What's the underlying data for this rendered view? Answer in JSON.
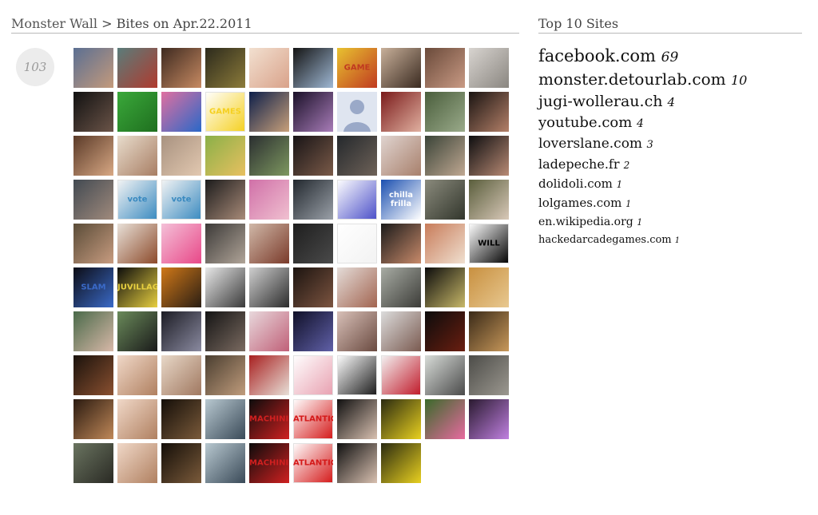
{
  "header": {
    "breadcrumb_root": "Monster Wall",
    "separator": ">",
    "breadcrumb_current": "Bites on Apr.22.2011",
    "sidebar_title": "Top 10 Sites"
  },
  "bite_count": "103",
  "top_sites": [
    {
      "name": "facebook.com",
      "count": "69"
    },
    {
      "name": "monster.detourlab.com",
      "count": "10"
    },
    {
      "name": "jugi-wollerau.ch",
      "count": "4"
    },
    {
      "name": "youtube.com",
      "count": "4"
    },
    {
      "name": "loverslane.com",
      "count": "3"
    },
    {
      "name": "ladepeche.fr",
      "count": "2"
    },
    {
      "name": "dolidoli.com",
      "count": "1"
    },
    {
      "name": "lolgames.com",
      "count": "1"
    },
    {
      "name": "en.wikipedia.org",
      "count": "1"
    },
    {
      "name": "hackedarcadegames.com",
      "count": "1"
    }
  ],
  "thumbnails": [
    {
      "c1": "#5b6f92",
      "c2": "#c49a7c"
    },
    {
      "c1": "#5a7c7a",
      "c2": "#b03a2e"
    },
    {
      "c1": "#3e2a20",
      "c2": "#c78a62"
    },
    {
      "c1": "#2c2a1c",
      "c2": "#8c7b3a"
    },
    {
      "c1": "#f2e0d0",
      "c2": "#d9a28a"
    },
    {
      "c1": "#141414",
      "c2": "#9fb8d4"
    },
    {
      "c1": "#e8c230",
      "c2": "#c03a20",
      "text": "GAME"
    },
    {
      "c1": "#c8b09a",
      "c2": "#3a2a20"
    },
    {
      "c1": "#6a4a3a",
      "c2": "#c99a84"
    },
    {
      "c1": "#d8d4d0",
      "c2": "#8a8680"
    },
    {
      "c1": "#111111",
      "c2": "#6b5448"
    },
    {
      "c1": "#3aa83a",
      "c2": "#1f6f1f"
    },
    {
      "c1": "#e070a0",
      "c2": "#2a68c8"
    },
    {
      "c1": "#ffffff",
      "c2": "#f5d020",
      "text": "GAMES"
    },
    {
      "c1": "#0d1f4a",
      "c2": "#c8a07a"
    },
    {
      "c1": "#1a1028",
      "c2": "#a87cb8"
    },
    {
      "c1": "#c7d2e6",
      "c2": "#eef2f8",
      "avatar": true
    },
    {
      "c1": "#7a1a1a",
      "c2": "#e0b0a0"
    },
    {
      "c1": "#4a5e3c",
      "c2": "#9aaa8a"
    },
    {
      "c1": "#1a1412",
      "c2": "#b48068"
    },
    {
      "c1": "#5a3a28",
      "c2": "#d8a884"
    },
    {
      "c1": "#e8dccc",
      "c2": "#a87e64"
    },
    {
      "c1": "#a89280",
      "c2": "#e2c8b0"
    },
    {
      "c1": "#8ab048",
      "c2": "#e8c060"
    },
    {
      "c1": "#2a2e30",
      "c2": "#7e9860"
    },
    {
      "c1": "#181416",
      "c2": "#7a5a48"
    },
    {
      "c1": "#24282c",
      "c2": "#6e6258"
    },
    {
      "c1": "#e0d4d0",
      "c2": "#a8806c"
    },
    {
      "c1": "#3a4438",
      "c2": "#c0a892"
    },
    {
      "c1": "#0e0e10",
      "c2": "#b88a74"
    },
    {
      "c1": "#424a52",
      "c2": "#a08a7c"
    },
    {
      "c1": "#f4f4f4",
      "c2": "#3a8ac0",
      "text": "vote"
    },
    {
      "c1": "#f4f4f4",
      "c2": "#3a8ac0",
      "text": "vote"
    },
    {
      "c1": "#1c1c1c",
      "c2": "#a88a78"
    },
    {
      "c1": "#d070a8",
      "c2": "#f0c0d0"
    },
    {
      "c1": "#22282e",
      "c2": "#9aa0a8"
    },
    {
      "c1": "#ffffff",
      "c2": "#4a4ec8"
    },
    {
      "c1": "#1a4fb0",
      "c2": "#ffffff",
      "text": "chilla frilla"
    },
    {
      "c1": "#8a8a7c",
      "c2": "#32362c"
    },
    {
      "c1": "#5a5e3c",
      "c2": "#d8c8b8"
    },
    {
      "c1": "#5a4c38",
      "c2": "#c89c80"
    },
    {
      "c1": "#e8e0d8",
      "c2": "#8c4a2a"
    },
    {
      "c1": "#f4c0d8",
      "c2": "#e84888"
    },
    {
      "c1": "#3c3a38",
      "c2": "#b0a498"
    },
    {
      "c1": "#d0b8a8",
      "c2": "#7a3a2a"
    },
    {
      "c1": "#1e1e1e",
      "c2": "#4a4a4a"
    },
    {
      "c1": "#ffffff",
      "c2": "#f2f2f2"
    },
    {
      "c1": "#1a1a1a",
      "c2": "#c88a6a"
    },
    {
      "c1": "#c87c5a",
      "c2": "#f0e0d0"
    },
    {
      "c1": "#ffffff",
      "c2": "#000000",
      "text": "WILL"
    },
    {
      "c1": "#0c0c14",
      "c2": "#3a6ac8",
      "text": "SLAM"
    },
    {
      "c1": "#0c0c0c",
      "c2": "#e8d040",
      "text": "JUVILLAGE"
    },
    {
      "c1": "#d07818",
      "c2": "#2a1e14"
    },
    {
      "c1": "#e8e8e8",
      "c2": "#3a3a3a"
    },
    {
      "c1": "#cfcfcf",
      "c2": "#2c2c2c"
    },
    {
      "c1": "#1c1410",
      "c2": "#7c5440"
    },
    {
      "c1": "#e4dcd8",
      "c2": "#a26450"
    },
    {
      "c1": "#a8aca4",
      "c2": "#3c3c38"
    },
    {
      "c1": "#0c0c0c",
      "c2": "#c8b868"
    },
    {
      "c1": "#c89040",
      "c2": "#e8c890"
    },
    {
      "c1": "#4a6a4a",
      "c2": "#d8b8a8"
    },
    {
      "c1": "#6a8a5a",
      "c2": "#1a1a1a"
    },
    {
      "c1": "#1c1c24",
      "c2": "#8a8aa0"
    },
    {
      "c1": "#141414",
      "c2": "#7a6a60"
    },
    {
      "c1": "#e8d8dc",
      "c2": "#c06078"
    },
    {
      "c1": "#101028",
      "c2": "#6060a8"
    },
    {
      "c1": "#d8c0b8",
      "c2": "#6a4a40"
    },
    {
      "c1": "#dcdcdc",
      "c2": "#7a5a50"
    },
    {
      "c1": "#0c0c0c",
      "c2": "#6a1e10"
    },
    {
      "c1": "#3a2a18",
      "c2": "#c8985a"
    },
    {
      "c1": "#1a120c",
      "c2": "#8a5030"
    },
    {
      "c1": "#f0d8c8",
      "c2": "#b08060"
    },
    {
      "c1": "#e8d8c8",
      "c2": "#a07860"
    },
    {
      "c1": "#4a3e30",
      "c2": "#c09c7c"
    },
    {
      "c1": "#a82020",
      "c2": "#e8e0d8"
    },
    {
      "c1": "#ffffff",
      "c2": "#e8a0b0"
    },
    {
      "c1": "#ffffff",
      "c2": "#1a1a1a"
    },
    {
      "c1": "#f4f4f4",
      "c2": "#c01828"
    },
    {
      "c1": "#d8dcd8",
      "c2": "#4a4a4a"
    },
    {
      "c1": "#4c4c48",
      "c2": "#9c9890"
    },
    {
      "c1": "#2a1a10",
      "c2": "#c08858"
    },
    {
      "c1": "#f0d8c8",
      "c2": "#b08060"
    },
    {
      "c1": "#140e08",
      "c2": "#7a5a3a"
    },
    {
      "c1": "#b8c8d0",
      "c2": "#3a4a58"
    },
    {
      "c1": "#0c0c0c",
      "c2": "#d02020",
      "text": "MACHINIMA"
    },
    {
      "c1": "#ffffff",
      "c2": "#d41818",
      "text": "ATLANTIC"
    },
    {
      "c1": "#101010",
      "c2": "#d8c0b0"
    },
    {
      "c1": "#2a2a10",
      "c2": "#e8d020"
    },
    {
      "c1": "#3a6a2a",
      "c2": "#e86aa0"
    },
    {
      "c1": "#2a1a30",
      "c2": "#c080e0"
    },
    {
      "c1": "#6a7460",
      "c2": "#2a2a24"
    },
    {
      "c1": "#f0d8c8",
      "c2": "#b08060"
    },
    {
      "c1": "#140e08",
      "c2": "#7a5a3a"
    },
    {
      "c1": "#b8c8d0",
      "c2": "#3a4a58"
    },
    {
      "c1": "#0c0c0c",
      "c2": "#d02020",
      "text": "MACHINIMA"
    },
    {
      "c1": "#ffffff",
      "c2": "#d41818",
      "text": "ATLANTIC"
    },
    {
      "c1": "#101010",
      "c2": "#d8c0b0"
    },
    {
      "c1": "#2a2a10",
      "c2": "#e8d020"
    }
  ]
}
